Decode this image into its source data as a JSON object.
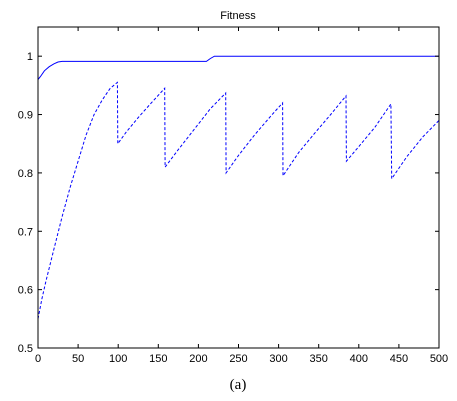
{
  "chart_data": {
    "type": "line",
    "title": "Fitness",
    "xlabel": "",
    "ylabel": "",
    "xlim": [
      0,
      500
    ],
    "ylim": [
      0.5,
      1.05
    ],
    "x_ticks": [
      0,
      50,
      100,
      150,
      200,
      250,
      300,
      350,
      400,
      450,
      500
    ],
    "x_tick_labels": [
      "0",
      "50",
      "100",
      "150",
      "200",
      "250",
      "300",
      "350",
      "400",
      "450",
      "500"
    ],
    "y_ticks": [
      0.5,
      0.6,
      0.7,
      0.8,
      0.9,
      1.0
    ],
    "y_tick_labels": [
      "0.5",
      "0.6",
      "0.7",
      "0.8",
      "0.9",
      "1"
    ],
    "grid": false,
    "legend": "none",
    "series": [
      {
        "style": "solid",
        "color": "#0000ff",
        "x": [
          0,
          3,
          8,
          14,
          20,
          25,
          30,
          210,
          215,
          220,
          500
        ],
        "y": [
          0.96,
          0.965,
          0.975,
          0.982,
          0.987,
          0.99,
          0.991,
          0.991,
          0.996,
          1.0,
          1.0
        ]
      },
      {
        "style": "dashed",
        "color": "#0000ff",
        "x": [
          0,
          5,
          10,
          20,
          30,
          40,
          50,
          60,
          70,
          80,
          90,
          99,
          99.5,
          110,
          125,
          140,
          158,
          158.5,
          175,
          195,
          215,
          234,
          234.5,
          250,
          270,
          290,
          305,
          305.5,
          325,
          345,
          365,
          384,
          384.5,
          400,
          420,
          440,
          441,
          460,
          480,
          500
        ],
        "y": [
          0.55,
          0.585,
          0.615,
          0.67,
          0.725,
          0.775,
          0.82,
          0.865,
          0.9,
          0.925,
          0.945,
          0.955,
          0.85,
          0.87,
          0.895,
          0.918,
          0.945,
          0.81,
          0.84,
          0.875,
          0.91,
          0.937,
          0.8,
          0.83,
          0.865,
          0.897,
          0.92,
          0.795,
          0.835,
          0.868,
          0.9,
          0.932,
          0.82,
          0.845,
          0.878,
          0.918,
          0.79,
          0.828,
          0.862,
          0.89
        ]
      }
    ]
  },
  "caption": "(a)"
}
